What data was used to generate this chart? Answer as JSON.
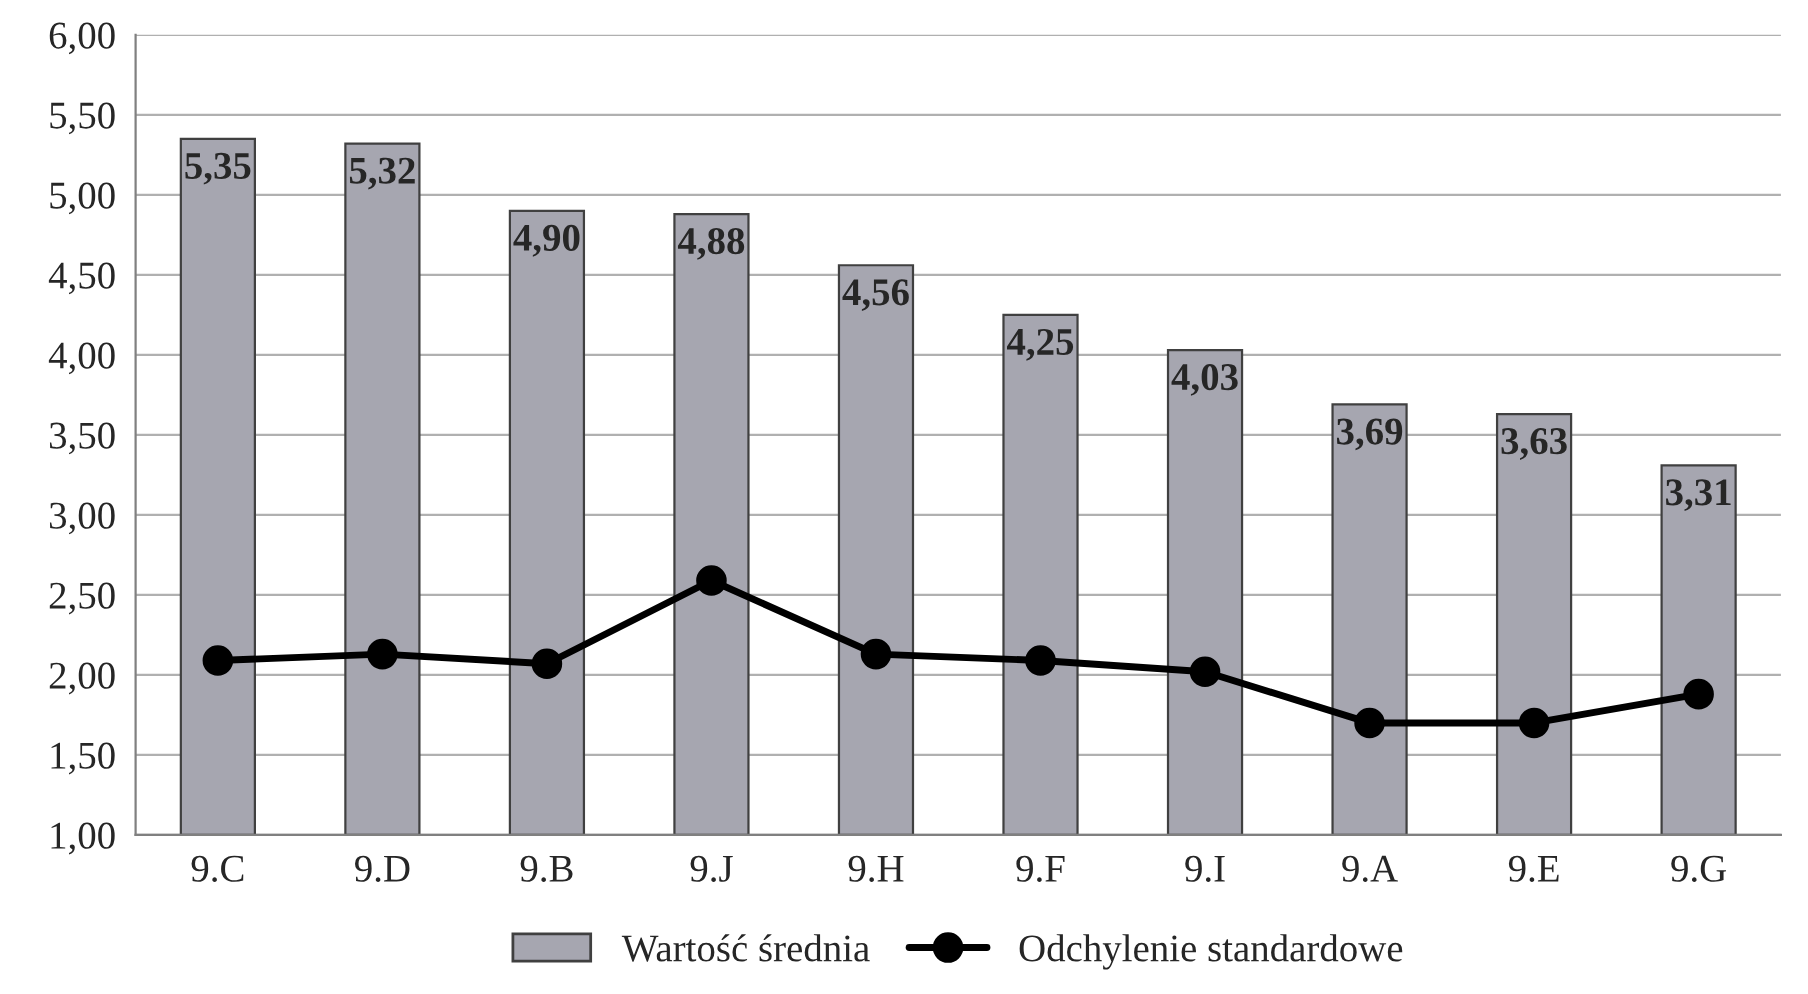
{
  "chart_data": {
    "type": "bar",
    "categories": [
      "9.C",
      "9.D",
      "9.B",
      "9.J",
      "9.H",
      "9.F",
      "9.I",
      "9.A",
      "9.E",
      "9.G"
    ],
    "series": [
      {
        "name": "Wartość średnia",
        "color": "#a6a6b0",
        "values": [
          5.35,
          5.32,
          4.9,
          4.88,
          4.56,
          4.25,
          4.03,
          3.69,
          3.63,
          3.31
        ],
        "value_labels": [
          "5,35",
          "5,32",
          "4,90",
          "4,88",
          "4,56",
          "4,25",
          "4,03",
          "3,69",
          "3,63",
          "3,31"
        ]
      },
      {
        "name": "Odchylenie standardowe",
        "type": "line",
        "color": "#000000",
        "marker": "circle",
        "values": [
          2.09,
          2.13,
          2.07,
          2.59,
          2.13,
          2.09,
          2.02,
          1.7,
          1.7,
          1.88
        ]
      }
    ],
    "ylim": [
      1,
      6
    ],
    "yticks": [
      {
        "value": 1,
        "label": "1,00"
      },
      {
        "value": 1.5,
        "label": "1,50"
      },
      {
        "value": 2,
        "label": "2,00"
      },
      {
        "value": 2.5,
        "label": "2,50"
      },
      {
        "value": 3,
        "label": "3,00"
      },
      {
        "value": 3.5,
        "label": "3,50"
      },
      {
        "value": 4,
        "label": "4,00"
      },
      {
        "value": 4.5,
        "label": "4,50"
      },
      {
        "value": 5,
        "label": "5,00"
      },
      {
        "value": 5.5,
        "label": "5,50"
      },
      {
        "value": 6,
        "label": "6,00"
      }
    ],
    "grid": "y",
    "legend": "bottom"
  }
}
